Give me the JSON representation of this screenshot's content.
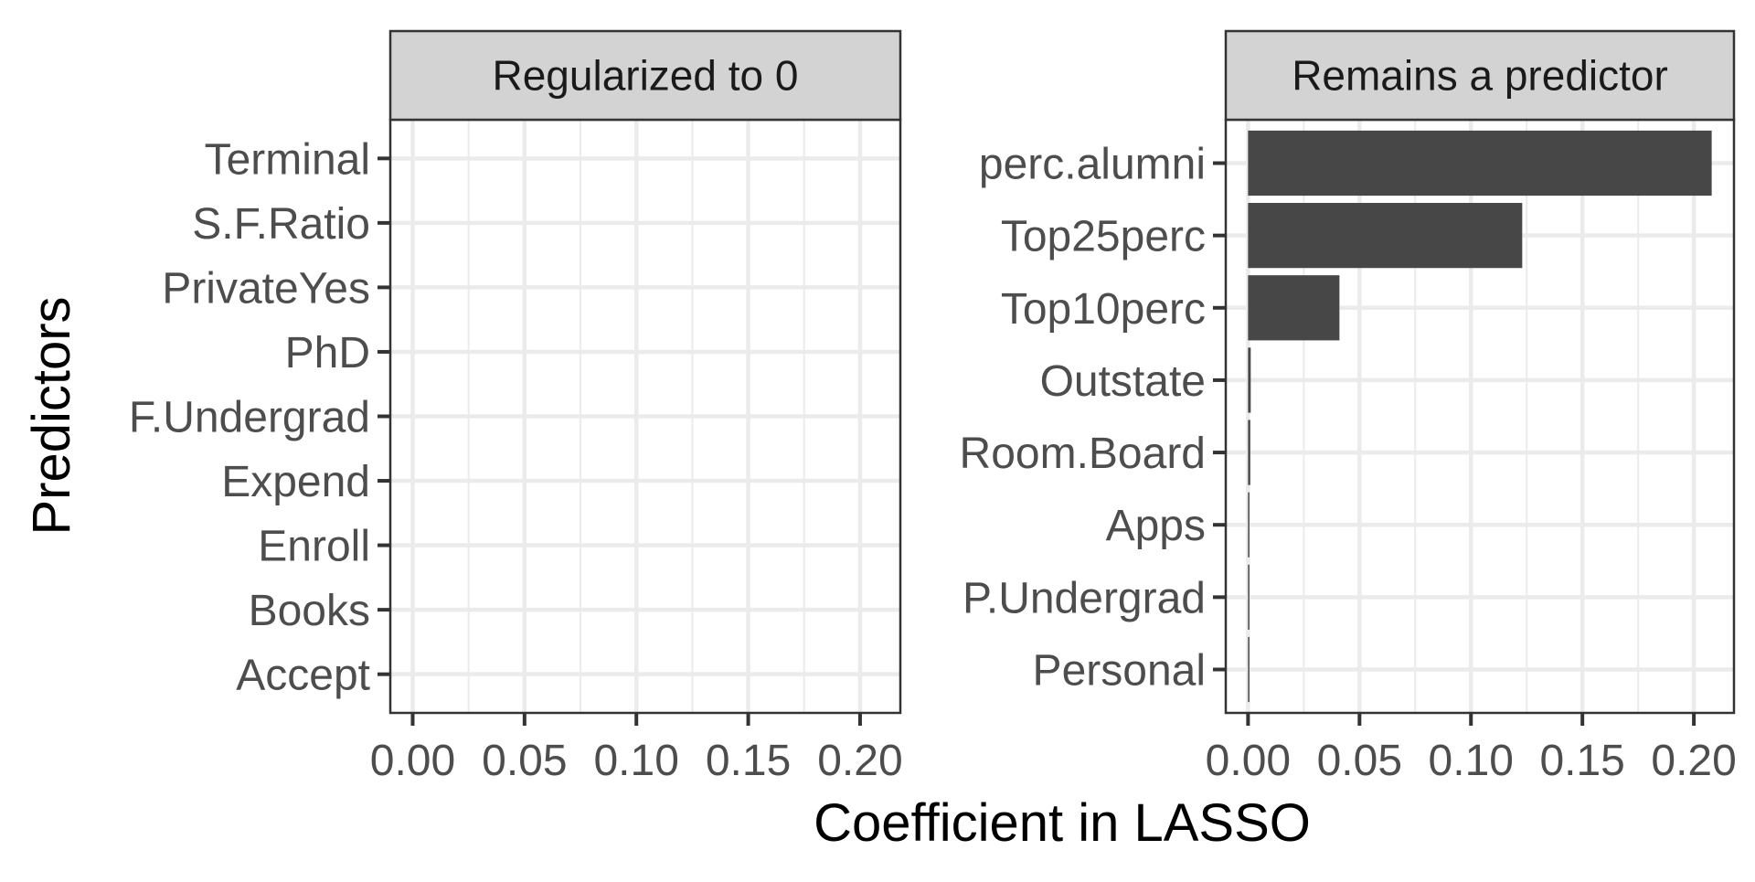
{
  "chart_data": {
    "type": "bar",
    "orientation": "horizontal",
    "xlabel": "Coefficient in LASSO",
    "ylabel": "Predictors",
    "xlim": [
      -0.01,
      0.218
    ],
    "x_ticks": [
      "0.00",
      "0.05",
      "0.10",
      "0.15",
      "0.20"
    ],
    "x_tick_values": [
      0,
      0.05,
      0.1,
      0.15,
      0.2
    ],
    "grid": true,
    "bar_color": "#474747",
    "strip_color": "#d3d3d3",
    "grid_color": "#ebebeb",
    "panels": [
      {
        "title": "Regularized to 0",
        "categories": [
          "Terminal",
          "S.F.Ratio",
          "PrivateYes",
          "PhD",
          "F.Undergrad",
          "Expend",
          "Enroll",
          "Books",
          "Accept"
        ],
        "values": [
          0,
          0,
          0,
          0,
          0,
          0,
          0,
          0,
          0
        ]
      },
      {
        "title": "Remains a predictor",
        "categories": [
          "perc.alumni",
          "Top25perc",
          "Top10perc",
          "Outstate",
          "Room.Board",
          "Apps",
          "P.Undergrad",
          "Personal"
        ],
        "values": [
          0.208,
          0.123,
          0.041,
          0.0012,
          0.001,
          0.0004,
          0.0006,
          0.0004
        ]
      }
    ]
  }
}
